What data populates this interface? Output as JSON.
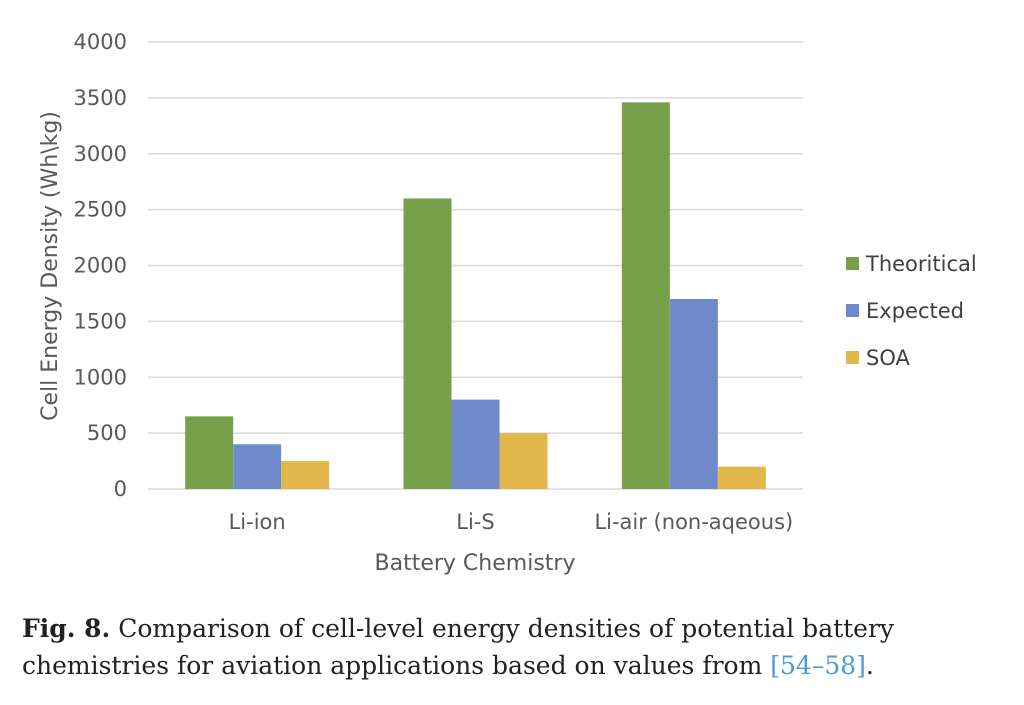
{
  "chart_data": {
    "type": "bar",
    "categories": [
      "Li-ion",
      "Li-S",
      "Li-air (non-aqeous)"
    ],
    "series": [
      {
        "name": "Theoritical",
        "values": [
          650,
          2600,
          3460
        ],
        "color": "#77a04a"
      },
      {
        "name": "Expected",
        "values": [
          400,
          800,
          1700
        ],
        "color": "#6f8ac8"
      },
      {
        "name": "SOA",
        "values": [
          250,
          500,
          200
        ],
        "color": "#e3b84a"
      }
    ],
    "xlabel": "Battery Chemistry",
    "ylabel": "Cell Energy Density (Wh\\kg)",
    "ylim": [
      0,
      4000
    ],
    "yticks": [
      0,
      500,
      1000,
      1500,
      2000,
      2500,
      3000,
      3500,
      4000
    ],
    "grid": true,
    "legend_position": "right"
  },
  "caption": {
    "label": "Fig. 8.",
    "text": "Comparison of cell-level energy densities of potential battery chemistries for aviation applications based on values from",
    "ref": "[54–58]",
    "end": "."
  }
}
